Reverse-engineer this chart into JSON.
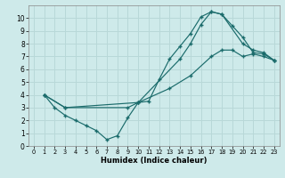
{
  "xlabel": "Humidex (Indice chaleur)",
  "background_color": "#ceeaea",
  "grid_color": "#b8d8d8",
  "line_color": "#1a6b6b",
  "xlim": [
    -0.5,
    23.5
  ],
  "ylim": [
    0,
    11
  ],
  "xticks": [
    0,
    1,
    2,
    3,
    4,
    5,
    6,
    7,
    8,
    9,
    10,
    11,
    12,
    13,
    14,
    15,
    16,
    17,
    18,
    19,
    20,
    21,
    22,
    23
  ],
  "yticks": [
    0,
    1,
    2,
    3,
    4,
    5,
    6,
    7,
    8,
    9,
    10
  ],
  "lines": [
    {
      "x": [
        1,
        2,
        3,
        4,
        5,
        6,
        7,
        8,
        9,
        10,
        11,
        12,
        13,
        14,
        15,
        16,
        17,
        18,
        19,
        20,
        21,
        22,
        23
      ],
      "y": [
        4.0,
        3.0,
        2.4,
        2.0,
        1.6,
        1.2,
        0.5,
        0.8,
        2.2,
        3.4,
        3.5,
        5.2,
        6.8,
        7.8,
        8.8,
        10.1,
        10.5,
        10.3,
        9.4,
        8.5,
        7.3,
        7.2,
        6.7
      ]
    },
    {
      "x": [
        1,
        3,
        10,
        14,
        15,
        16,
        17,
        18,
        20,
        21,
        22,
        23
      ],
      "y": [
        4.0,
        3.0,
        3.4,
        6.8,
        8.0,
        9.5,
        10.5,
        10.3,
        8.0,
        7.5,
        7.3,
        6.7
      ]
    },
    {
      "x": [
        1,
        3,
        9,
        10,
        13,
        15,
        17,
        18,
        19,
        20,
        21,
        22,
        23
      ],
      "y": [
        4.0,
        3.0,
        3.0,
        3.4,
        4.5,
        5.5,
        7.0,
        7.5,
        7.5,
        7.0,
        7.2,
        7.0,
        6.7
      ]
    }
  ]
}
